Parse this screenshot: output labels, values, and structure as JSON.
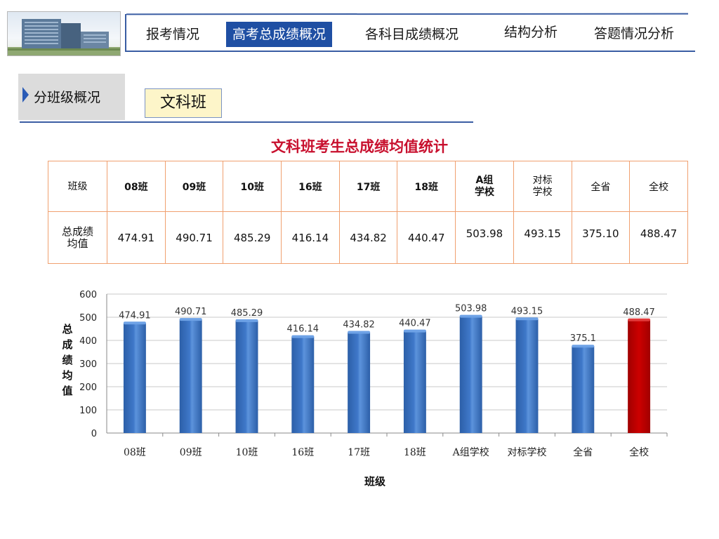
{
  "nav": {
    "items": [
      {
        "label": "报考情况",
        "active": false
      },
      {
        "label": "高考总成绩概况",
        "active": true
      },
      {
        "label": "各科目成绩概况",
        "active": false
      },
      {
        "label": "结构分析",
        "active": false
      },
      {
        "label": "答题情况分析",
        "active": false
      }
    ]
  },
  "section": {
    "label": "分班级概况",
    "class_name": "文科班"
  },
  "table": {
    "title": "文科班考生总成绩均值统计",
    "row_header": "班级",
    "row_value_label_line1": "总成绩",
    "row_value_label_line2": "均值",
    "columns": [
      {
        "h1": "08班",
        "h2": "",
        "value": "474.91"
      },
      {
        "h1": "09班",
        "h2": "",
        "value": "490.71"
      },
      {
        "h1": "10班",
        "h2": "",
        "value": "485.29"
      },
      {
        "h1": "16班",
        "h2": "",
        "value": "416.14"
      },
      {
        "h1": "17班",
        "h2": "",
        "value": "434.82"
      },
      {
        "h1": "18班",
        "h2": "",
        "value": "440.47"
      },
      {
        "h1": "A组",
        "h2": "学校",
        "value": "503.98"
      },
      {
        "h1": "对标",
        "h2": "学校",
        "value": "493.15"
      },
      {
        "h1": "全省",
        "h2": "",
        "value": "375.10"
      },
      {
        "h1": "全校",
        "h2": "",
        "value": "488.47"
      }
    ]
  },
  "chart_data": {
    "type": "bar",
    "categories": [
      "08班",
      "09班",
      "10班",
      "16班",
      "17班",
      "18班",
      "A组学校",
      "对标学校",
      "全省",
      "全校"
    ],
    "values": [
      474.91,
      490.71,
      485.29,
      416.14,
      434.82,
      440.47,
      503.98,
      493.15,
      375.1,
      488.47
    ],
    "data_labels": [
      "474.91",
      "490.71",
      "485.29",
      "416.14",
      "434.82",
      "440.47",
      "503.98",
      "493.15",
      "375.1",
      "488.47"
    ],
    "highlight_index": 9,
    "xlabel": "班级",
    "ylabel_chars": [
      "总",
      "成",
      "绩",
      "均",
      "值"
    ],
    "ylim": [
      0,
      600
    ],
    "yticks": [
      0,
      100,
      200,
      300,
      400,
      500,
      600
    ],
    "grid": true,
    "bar_color": "#3f78c9",
    "highlight_color": "#cc0000"
  }
}
